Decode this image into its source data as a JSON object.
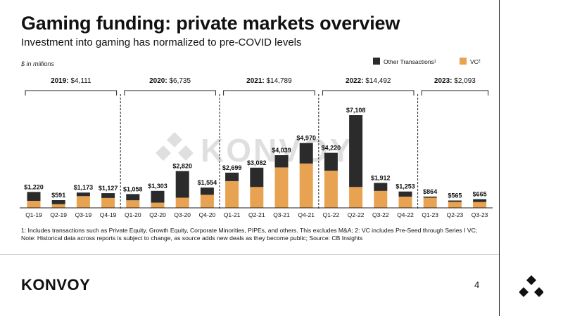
{
  "title": "Gaming funding: private markets overview",
  "subtitle": "Investment into gaming has normalized to pre-COVID levels",
  "units_label": "$ in millions",
  "brand": {
    "name": "KONVOY",
    "watermark": "KONVOY",
    "page_number": "4"
  },
  "footnote": "1: Includes transactions such as Private Equity, Growth Equity, Corporate Minorities, PIPEs, and others. This excludes M&A; 2: VC includes Pre-Seed through Series I VC; Note: Historical data across reports is subject to change, as source adds new deals as they become public; Source: CB Insights",
  "colors": {
    "vc": "#E8A352",
    "other": "#2B2B2B",
    "text": "#111111"
  },
  "chart_data": {
    "type": "bar",
    "stacked": true,
    "categories": [
      "Q1-19",
      "Q2-19",
      "Q3-19",
      "Q4-19",
      "Q1-20",
      "Q2-20",
      "Q3-20",
      "Q4-20",
      "Q1-21",
      "Q2-21",
      "Q3-21",
      "Q4-21",
      "Q1-22",
      "Q2-22",
      "Q3-22",
      "Q4-22",
      "Q1-23",
      "Q2-23",
      "Q3-23"
    ],
    "totals": [
      1220,
      591,
      1173,
      1127,
      1058,
      1303,
      2820,
      1554,
      2699,
      3082,
      4039,
      4970,
      4220,
      7108,
      1912,
      1253,
      864,
      565,
      665
    ],
    "total_labels": [
      "$1,220",
      "$591",
      "$1,173",
      "$1,127",
      "$1,058",
      "$1,303",
      "$2,820",
      "$1,554",
      "$2,699",
      "$3,082",
      "$4,039",
      "$4,970",
      "$4,220",
      "$7,108",
      "$1,912",
      "$1,253",
      "$864",
      "$565",
      "$665"
    ],
    "series": [
      {
        "name": "VC",
        "legend_label": "VC²",
        "values": [
          540,
          280,
          900,
          760,
          580,
          400,
          780,
          1000,
          2050,
          1600,
          3100,
          3400,
          2850,
          1600,
          1300,
          860,
          780,
          460,
          450
        ]
      },
      {
        "name": "Other Transactions",
        "legend_label": "Other Transactions¹",
        "values": [
          680,
          311,
          273,
          367,
          478,
          903,
          2040,
          554,
          649,
          1482,
          939,
          1570,
          1370,
          5508,
          612,
          393,
          84,
          105,
          215
        ]
      }
    ],
    "year_groups": [
      {
        "year": "2019:",
        "total": "$4,111",
        "start": 0,
        "end": 3
      },
      {
        "year": "2020:",
        "total": "$6,735",
        "start": 4,
        "end": 7
      },
      {
        "year": "2021:",
        "total": "$14,789",
        "start": 8,
        "end": 11
      },
      {
        "year": "2022:",
        "total": "$14,492",
        "start": 12,
        "end": 15
      },
      {
        "year": "2023:",
        "total": "$2,093",
        "start": 16,
        "end": 18
      }
    ],
    "legend_position": "top-right",
    "grid": false,
    "ylim": [
      0,
      7500
    ],
    "xlabel": "",
    "ylabel": ""
  }
}
